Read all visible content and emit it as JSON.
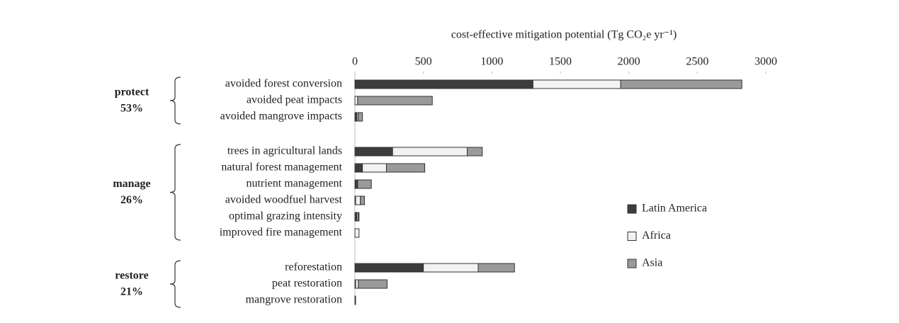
{
  "chart_data": {
    "type": "stacked-bar-horizontal",
    "x_label": "cost-effective mitigation potential (Tg CO₂e yr⁻¹)",
    "xlim": [
      0,
      3000
    ],
    "xticks": [
      0,
      500,
      1000,
      1500,
      2000,
      2500,
      3000
    ],
    "groups": [
      {
        "name": "protect",
        "share": 53,
        "share_label": "53%",
        "color": "#78b898",
        "categories": [
          "avoided forest conversion",
          "avoided peat impacts",
          "avoided mangrove impacts"
        ]
      },
      {
        "name": "manage",
        "share": 26,
        "share_label": "26%",
        "color": "#e3b13e",
        "categories": [
          "trees in agricultural lands",
          "natural forest management",
          "nutrient management",
          "avoided woodfuel harvest",
          "optimal grazing intensity",
          "improved fire management"
        ]
      },
      {
        "name": "restore",
        "share": 21,
        "share_label": "21%",
        "color": "#e9a597",
        "categories": [
          "reforestation",
          "peat restoration",
          "mangrove restoration"
        ]
      }
    ],
    "series": [
      {
        "name": "Latin America",
        "color": "#3c3c3c",
        "values": [
          1300,
          0,
          15,
          275,
          55,
          20,
          5,
          15,
          0,
          500,
          5,
          5
        ]
      },
      {
        "name": "Africa",
        "color": "#f2f2f2",
        "values": [
          640,
          20,
          10,
          545,
          175,
          0,
          35,
          10,
          30,
          400,
          20,
          0
        ]
      },
      {
        "name": "Asia",
        "color": "#9a9a9a",
        "values": [
          885,
          545,
          30,
          110,
          280,
          100,
          30,
          5,
          0,
          265,
          210,
          0
        ]
      }
    ]
  }
}
